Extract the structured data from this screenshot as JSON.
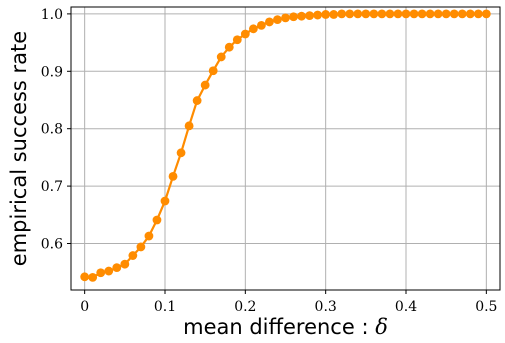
{
  "chart_data": {
    "type": "line",
    "xlabel": "mean difference : ",
    "xlabel_symbol": "δ",
    "ylabel": "empirical success rate",
    "xlim": [
      -0.017,
      0.517
    ],
    "ylim": [
      0.519,
      1.012
    ],
    "grid": true,
    "x_ticks": [
      0,
      0.1,
      0.2,
      0.3,
      0.4,
      0.5
    ],
    "x_tick_labels": [
      "0",
      "0.1",
      "0.2",
      "0.3",
      "0.4",
      "0.5"
    ],
    "y_ticks": [
      0.6,
      0.7,
      0.8,
      0.9,
      1.0
    ],
    "y_tick_labels": [
      "0.6",
      "0.7",
      "0.8",
      "0.9",
      "1.0"
    ],
    "series_color": "#ff8c00",
    "grid_color": "#b0b0b0",
    "series": [
      {
        "x": [
          0.0,
          0.01,
          0.02,
          0.03,
          0.04,
          0.05,
          0.06,
          0.07,
          0.08,
          0.09,
          0.1,
          0.11,
          0.12,
          0.13,
          0.14,
          0.15,
          0.16,
          0.17,
          0.18,
          0.19,
          0.2,
          0.21,
          0.22,
          0.23,
          0.24,
          0.25,
          0.26,
          0.27,
          0.28,
          0.29,
          0.3,
          0.31,
          0.32,
          0.33,
          0.34,
          0.35,
          0.36,
          0.37,
          0.38,
          0.39,
          0.4,
          0.41,
          0.42,
          0.43,
          0.44,
          0.45,
          0.46,
          0.47,
          0.48,
          0.49,
          0.5
        ],
        "y": [
          0.542,
          0.541,
          0.549,
          0.552,
          0.558,
          0.564,
          0.579,
          0.594,
          0.613,
          0.641,
          0.674,
          0.717,
          0.758,
          0.805,
          0.849,
          0.876,
          0.901,
          0.925,
          0.942,
          0.955,
          0.965,
          0.974,
          0.98,
          0.986,
          0.99,
          0.993,
          0.995,
          0.996,
          0.997,
          0.998,
          0.999,
          0.999,
          1.0,
          1.0,
          1.0,
          1.0,
          1.0,
          1.0,
          1.0,
          1.0,
          1.0,
          1.0,
          1.0,
          1.0,
          1.0,
          1.0,
          1.0,
          1.0,
          1.0,
          1.0,
          1.0
        ]
      }
    ]
  }
}
